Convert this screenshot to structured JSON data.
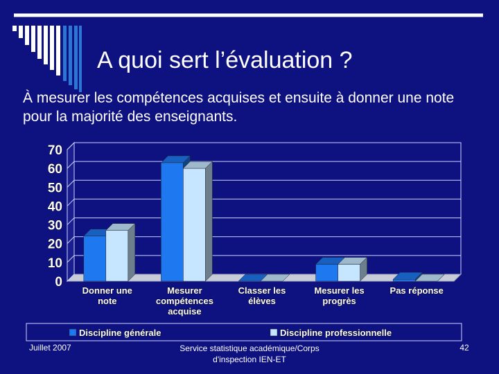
{
  "slide": {
    "title": "A quoi sert l’évaluation ?",
    "subtitle": "À mesurer les compétences acquises et ensuite à donner une note  pour la majorité des enseignants.",
    "footer_left": "Juillet 2007",
    "footer_center": "Service statistique académique/Corps d'inspection IEN-ET",
    "page_number": "42"
  },
  "colors": {
    "background": "#0e1180",
    "series_1": "#1e78f0",
    "series_2": "#c6e6ff",
    "plot_area": "#0e1180"
  },
  "chart_data": {
    "type": "bar",
    "categories": [
      "Donner une note",
      "Mesurer compétences acquise",
      "Classer les élèves",
      "Mesurer les progrès",
      "Pas réponse"
    ],
    "series": [
      {
        "name": "Discipline générale",
        "values": [
          24,
          63,
          0,
          9,
          1
        ]
      },
      {
        "name": "Discipline professionnelle",
        "values": [
          27,
          60,
          0,
          9,
          0
        ]
      }
    ],
    "ylim": [
      0,
      70
    ],
    "yticks": [
      0,
      10,
      20,
      30,
      40,
      50,
      60,
      70
    ],
    "grid": true,
    "legend_position": "bottom",
    "style": "3d"
  }
}
